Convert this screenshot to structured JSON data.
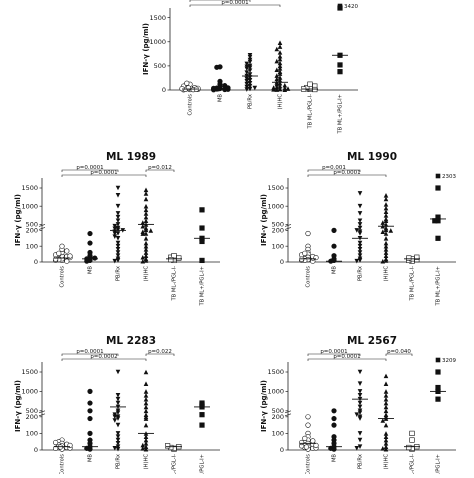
{
  "chart_data": [
    {
      "type": "scatter",
      "title": "",
      "ylabel": "IFN-γ (pg/ml)",
      "yticks": [
        "0",
        "500",
        "1000",
        "1500"
      ],
      "ylim": [
        0,
        1700
      ],
      "categories": [
        "Controls",
        "MB",
        "PB/Rx",
        "(H)HC",
        "TB ML-/PGL-I-",
        "TB ML+/PGL-I+"
      ],
      "markers": [
        "circle-open",
        "circle-filled",
        "triangle-down-filled",
        "triangle-up-filled",
        "square-open",
        "square-filled"
      ],
      "medians": [
        20,
        30,
        290,
        160,
        20,
        720
      ],
      "comparisons": [
        {
          "label": "p=0.0001",
          "from": 0,
          "to": 2
        },
        {
          "label": "p=0.0001",
          "from": 0,
          "to": 3
        }
      ],
      "outlier_labels": [
        {
          "category": 5,
          "text": "3420"
        }
      ],
      "values": [
        [
          10,
          30,
          60,
          120,
          20,
          40,
          5,
          15,
          50,
          80,
          25,
          35,
          8,
          12,
          45,
          140,
          18,
          28
        ],
        [
          480,
          470,
          180,
          120,
          60,
          40,
          30,
          20,
          10,
          5,
          90,
          15,
          25,
          35,
          45
        ],
        [
          720,
          680,
          620,
          580,
          540,
          500,
          480,
          460,
          440,
          400,
          360,
          320,
          290,
          260,
          230,
          200,
          180,
          140,
          120,
          80,
          60,
          40,
          20,
          10
        ],
        [
          980,
          900,
          850,
          780,
          700,
          640,
          600,
          560,
          500,
          450,
          420,
          380,
          340,
          300,
          260,
          230,
          200,
          160,
          140,
          120,
          100,
          80,
          60,
          40,
          20,
          10,
          5,
          15,
          30,
          50
        ],
        [
          15,
          25,
          35,
          50,
          80,
          120,
          10,
          20
        ],
        [
          1700,
          720,
          520,
          380
        ]
      ]
    },
    {
      "type": "scatter",
      "title": "ML 1989",
      "ylabel": "IFN-γ (pg/ml)",
      "yticks": [
        "0",
        "100",
        "200",
        "500",
        "1000",
        "1500"
      ],
      "ylim": [
        0,
        1600
      ],
      "categories": [
        "Controls",
        "MB",
        "PB/Rx",
        "(H)HC",
        "TB ML-/PGL-I-",
        "TB ML+/PGL-I+"
      ],
      "markers": [
        "circle-open",
        "circle-filled",
        "triangle-down-filled",
        "triangle-up-filled",
        "square-open",
        "square-filled"
      ],
      "medians": [
        25,
        20,
        200,
        500,
        20,
        150
      ],
      "comparisons": [
        {
          "label": "p=0.0001",
          "from": 0,
          "to": 2
        },
        {
          "label": "p=0.0001",
          "from": 0,
          "to": 3
        },
        {
          "label": "p=0.012",
          "from": 3,
          "to": 4
        }
      ],
      "values": [
        [
          10,
          20,
          30,
          40,
          50,
          60,
          80,
          100,
          15,
          25,
          35,
          45,
          5,
          12,
          18,
          28,
          38,
          55,
          70
        ],
        [
          180,
          120,
          60,
          40,
          30,
          20,
          10,
          5,
          25
        ],
        [
          1500,
          1300,
          1000,
          800,
          700,
          600,
          500,
          450,
          400,
          380,
          350,
          300,
          250,
          200,
          180,
          150,
          120,
          100,
          80,
          60,
          40,
          20,
          10,
          5,
          160
        ],
        [
          1450,
          1350,
          1200,
          1000,
          900,
          800,
          700,
          600,
          550,
          500,
          450,
          400,
          350,
          300,
          250,
          200,
          180,
          150,
          120,
          100,
          80,
          60,
          40,
          20,
          10,
          5,
          30
        ],
        [
          10,
          20,
          30,
          40,
          15,
          25
        ],
        [
          900,
          400,
          150,
          130,
          10
        ]
      ]
    },
    {
      "type": "scatter",
      "title": "ML 1990",
      "ylabel": "IFN-γ (pg/ml)",
      "yticks": [
        "0",
        "100",
        "200",
        "500",
        "1000",
        "1500"
      ],
      "ylim": [
        0,
        1600
      ],
      "categories": [
        "Controls",
        "MB",
        "PB/Rx",
        "(H)HC",
        "TB ML-/PGL-I-",
        "TB ML+/PGL-I+"
      ],
      "markers": [
        "circle-open",
        "circle-filled",
        "triangle-down-filled",
        "triangle-up-filled",
        "square-open",
        "square-filled"
      ],
      "medians": [
        20,
        5,
        150,
        450,
        20,
        650
      ],
      "comparisons": [
        {
          "label": "p=0.001",
          "from": 0,
          "to": 2
        },
        {
          "label": "p=0.0001",
          "from": 0,
          "to": 3
        }
      ],
      "outlier_labels": [
        {
          "category": 5,
          "text": "2303"
        }
      ],
      "values": [
        [
          250,
          100,
          80,
          60,
          50,
          40,
          30,
          20,
          15,
          10,
          5,
          25,
          35,
          45,
          12,
          18,
          28,
          55
        ],
        [
          200,
          100,
          40,
          20,
          10,
          5
        ],
        [
          1350,
          1000,
          800,
          600,
          500,
          400,
          300,
          250,
          200,
          150,
          120,
          100,
          80,
          60,
          40,
          20,
          10,
          5
        ],
        [
          1300,
          1200,
          1050,
          950,
          850,
          750,
          650,
          600,
          550,
          500,
          450,
          400,
          350,
          300,
          250,
          200,
          150,
          120,
          100,
          80,
          60,
          40,
          20,
          10,
          5
        ],
        [
          5,
          10,
          15,
          20,
          25,
          30
        ],
        [
          1600,
          700,
          600,
          600,
          150
        ]
      ]
    },
    {
      "type": "scatter",
      "title": "ML 2283",
      "ylabel": "IFN-γ (pg/ml)",
      "yticks": [
        "0",
        "100",
        "200",
        "500",
        "1000",
        "1500"
      ],
      "ylim": [
        0,
        1600
      ],
      "categories": [
        "Controls",
        "MB",
        "PB/Rx",
        "(H)HC",
        "TB ML-/PGL-I-",
        "TB ML+/PGL-I+"
      ],
      "markers": [
        "circle-open",
        "circle-filled",
        "triangle-down-filled",
        "triangle-up-filled",
        "square-open",
        "square-filled"
      ],
      "medians": [
        20,
        20,
        600,
        100,
        20,
        600
      ],
      "comparisons": [
        {
          "label": "p=0.0001",
          "from": 0,
          "to": 2
        },
        {
          "label": "p=0.0002",
          "from": 0,
          "to": 3
        },
        {
          "label": "p=0.022",
          "from": 3,
          "to": 4
        }
      ],
      "values": [
        [
          60,
          50,
          40,
          30,
          25,
          20,
          15,
          10,
          5,
          35,
          45,
          12,
          18,
          28
        ],
        [
          1000,
          700,
          500,
          300,
          100,
          60,
          40,
          20,
          10,
          5
        ],
        [
          1600,
          900,
          800,
          700,
          600,
          500,
          450,
          400,
          350,
          300,
          250,
          200,
          150,
          100,
          80,
          60,
          40,
          20,
          10,
          5
        ],
        [
          1500,
          1200,
          1000,
          900,
          800,
          700,
          600,
          500,
          400,
          300,
          200,
          150,
          100,
          80,
          60,
          40,
          20,
          10,
          5,
          30
        ],
        [
          5,
          10,
          15,
          20,
          25
        ],
        [
          700,
          650,
          600,
          400,
          150
        ]
      ]
    },
    {
      "type": "scatter",
      "title": "ML 2567",
      "ylabel": "IFN-γ (pg/ml)",
      "yticks": [
        "0",
        "100",
        "200",
        "500",
        "1000",
        "1500"
      ],
      "ylim": [
        0,
        1600
      ],
      "categories": [
        "Controls",
        "MB",
        "PB/Rx",
        "(H)HC",
        "TB ML-/PGL-I-",
        "TB ML+/PGL-I+"
      ],
      "markers": [
        "circle-open",
        "circle-filled",
        "triangle-down-filled",
        "triangle-up-filled",
        "square-open",
        "square-filled"
      ],
      "medians": [
        40,
        20,
        800,
        300,
        20,
        1000
      ],
      "comparisons": [
        {
          "label": "p=0.0001",
          "from": 0,
          "to": 2
        },
        {
          "label": "p=0.0001",
          "from": 0,
          "to": 3
        },
        {
          "label": "p=0.040",
          "from": 3,
          "to": 4
        }
      ],
      "outlier_labels": [
        {
          "category": 5,
          "text": "3209"
        }
      ],
      "values": [
        [
          200,
          150,
          100,
          80,
          60,
          50,
          40,
          30,
          20,
          15,
          10,
          5,
          25,
          35,
          45,
          12,
          18,
          28,
          55,
          70
        ],
        [
          500,
          300,
          150,
          80,
          60,
          40,
          20,
          10,
          5
        ],
        [
          1500,
          1200,
          1000,
          900,
          800,
          700,
          600,
          500,
          450,
          400,
          300,
          200,
          100,
          60,
          20,
          10
        ],
        [
          1400,
          1200,
          1000,
          900,
          800,
          700,
          600,
          500,
          400,
          300,
          250,
          200,
          150,
          100,
          80,
          60,
          40,
          20,
          10,
          5
        ],
        [
          5,
          10,
          15,
          20,
          60,
          100
        ],
        [
          1700,
          1100,
          1000,
          800
        ]
      ]
    }
  ]
}
